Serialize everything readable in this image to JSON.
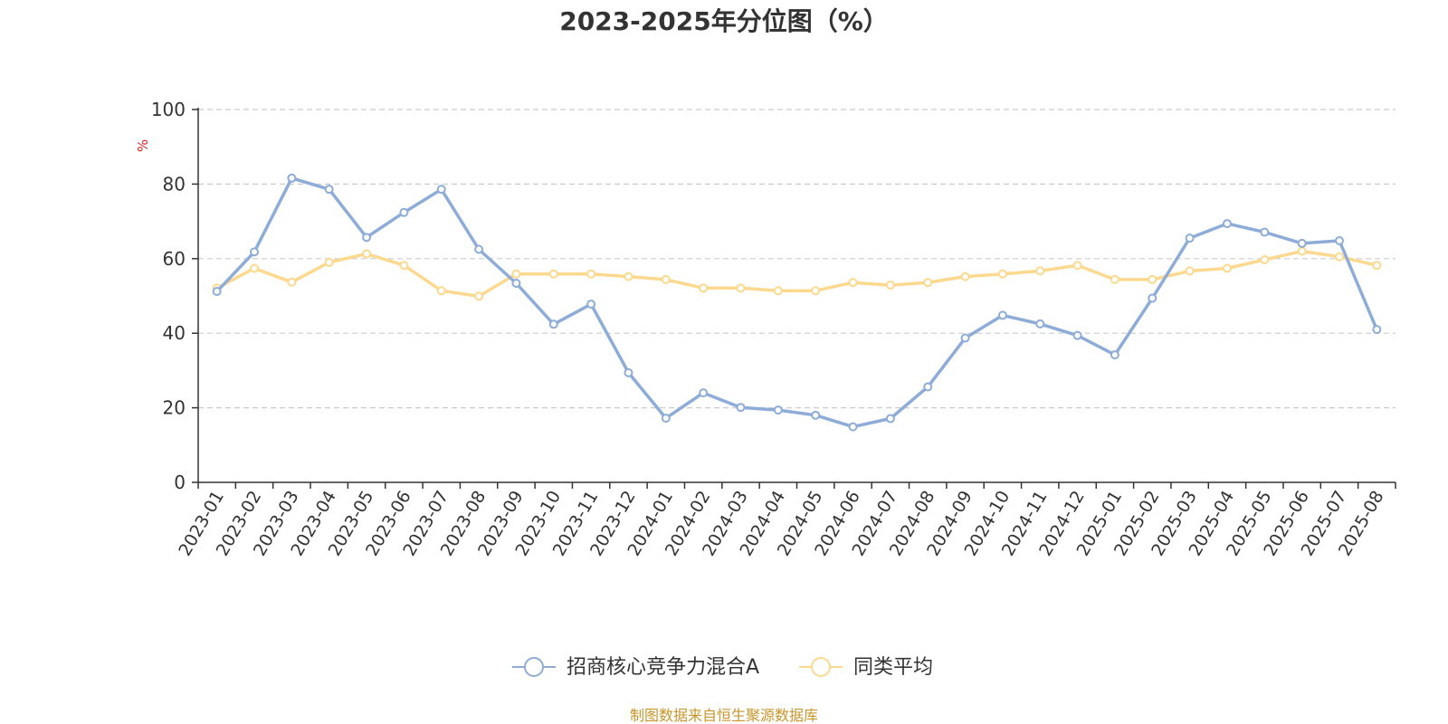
{
  "chart_data": {
    "type": "line",
    "title": "2023-2025年分位图（%）",
    "y_unit": "%",
    "ylim": [
      0,
      100
    ],
    "y_ticks": [
      0,
      20,
      40,
      60,
      80,
      100
    ],
    "grid": "horizontal dashed",
    "legend_position": "bottom-center",
    "x_tick_labels": [
      "2023-01",
      "2023-02",
      "2023-03",
      "2023-04",
      "2023-05",
      "2023-06",
      "2023-07",
      "2023-08",
      "2023-09",
      "2023-10",
      "2023-11",
      "2023-12",
      "2024-01",
      "2024-02",
      "2024-03",
      "2024-04",
      "2024-05",
      "2024-06",
      "2024-07",
      "2024-08",
      "2024-09",
      "2024-10",
      "2024-11",
      "2024-12",
      "2025-01",
      "2025-02",
      "2025-03",
      "2025-04",
      "2025-05",
      "2025-06",
      "2025-07",
      "2025-08"
    ],
    "points_per_series": 32,
    "series": [
      {
        "name": "招商核心竞争力混合A",
        "color": "#8eacd8",
        "values": [
          51.2,
          61.8,
          81.6,
          78.6,
          65.7,
          72.4,
          78.6,
          62.5,
          53.4,
          42.4,
          47.8,
          29.4,
          17.2,
          24.0,
          20.1,
          19.4,
          18.0,
          14.9,
          17.1,
          25.6,
          38.7,
          44.8,
          42.5,
          39.4,
          34.2,
          49.4,
          65.5,
          69.4,
          67.1,
          64.1,
          64.8,
          41.0
        ]
      },
      {
        "name": "同类平均",
        "color": "#fcd98f",
        "values": [
          52.1,
          57.4,
          53.7,
          59.0,
          61.3,
          58.2,
          51.4,
          49.9,
          55.9,
          55.9,
          55.9,
          55.2,
          54.4,
          52.1,
          52.1,
          51.4,
          51.4,
          53.6,
          52.9,
          53.6,
          55.2,
          55.9,
          56.7,
          58.2,
          54.4,
          54.4,
          56.7,
          57.4,
          59.7,
          62.0,
          60.5,
          58.2
        ]
      }
    ]
  },
  "footer": {
    "source_text": "制图数据来自恒生聚源数据库",
    "source_color": "#c8962a"
  },
  "colors": {
    "unit_label": "#e02020",
    "axis": "#333333",
    "grid": "#cccccc"
  }
}
